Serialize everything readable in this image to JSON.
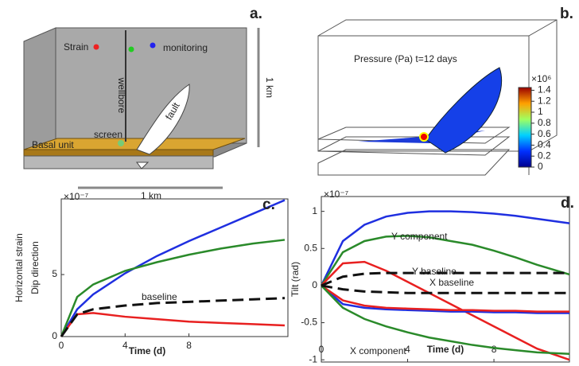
{
  "panel_a": {
    "label": "a.",
    "strain": "Strain",
    "monitoring": "monitoring",
    "wellbore": "wellbore",
    "screen": "screen",
    "basal_unit": "Basal unit",
    "fault": "fault",
    "scale_vertical": "1 km",
    "scale_horizontal": "1 km"
  },
  "panel_b": {
    "label": "b.",
    "title": "Pressure (Pa) t=12 days",
    "colorbar": {
      "multiplier": "×10⁶",
      "clim": [
        0,
        1.45
      ],
      "ticks": [
        1.4,
        1.2,
        1,
        0.8,
        0.6,
        0.4,
        0.2,
        0
      ]
    }
  },
  "chart_data": [
    {
      "type": "line",
      "label": "c.",
      "y_multiplier": "×10⁻⁷",
      "ylabel": "Horizontal strain",
      "ylabel2": "Dip direction",
      "xlabel": "Time (d)",
      "x": [
        0,
        1,
        2,
        4,
        6,
        8,
        10,
        12,
        14
      ],
      "xlim": [
        0,
        14.2
      ],
      "xticks": [
        0,
        4,
        8
      ],
      "ylim": [
        0,
        11.1
      ],
      "yticks": [
        0,
        5
      ],
      "annotations": [
        "baseline"
      ],
      "series": [
        {
          "color": "#1f2fe0",
          "values": [
            0,
            2.2,
            3.4,
            5.1,
            6.5,
            7.7,
            8.8,
            9.9,
            11
          ]
        },
        {
          "color": "#2a8a2a",
          "values": [
            0,
            3.2,
            4.2,
            5.3,
            6.0,
            6.6,
            7.1,
            7.5,
            7.8
          ]
        },
        {
          "color": "#e82020",
          "values": [
            0,
            1.8,
            1.9,
            1.6,
            1.4,
            1.2,
            1.1,
            1.0,
            0.9
          ]
        },
        {
          "color": "#111111",
          "dashed": true,
          "values": [
            0,
            1.8,
            2.2,
            2.5,
            2.7,
            2.8,
            2.9,
            3.0,
            3.1
          ]
        }
      ]
    },
    {
      "type": "line",
      "label": "d.",
      "y_multiplier": "×10⁻⁷",
      "ylabel": "Tilt (rad)",
      "xlabel": "Time (d)",
      "x": [
        0,
        1,
        2,
        3,
        4,
        5,
        6,
        7,
        8,
        9,
        10,
        11.5
      ],
      "xlim": [
        0,
        11.5
      ],
      "xticks": [
        0,
        4,
        8
      ],
      "ylim": [
        -1.03,
        1.2
      ],
      "yticks": [
        -1,
        -0.5,
        0,
        0.5,
        1
      ],
      "annotations": [
        "Y component",
        "Y baseline",
        "X baseline",
        "X component"
      ],
      "series": [
        {
          "color": "#1f2fe0",
          "values": [
            0,
            0.6,
            0.82,
            0.93,
            0.98,
            1.0,
            1.0,
            0.99,
            0.97,
            0.94,
            0.9,
            0.84
          ]
        },
        {
          "color": "#2a8a2a",
          "values": [
            0,
            0.45,
            0.6,
            0.66,
            0.67,
            0.65,
            0.6,
            0.55,
            0.47,
            0.38,
            0.28,
            0.15
          ]
        },
        {
          "color": "#e82020",
          "values": [
            0,
            0.3,
            0.32,
            0.2,
            0.05,
            -0.1,
            -0.25,
            -0.4,
            -0.55,
            -0.7,
            -0.85,
            -1.0
          ]
        },
        {
          "color": "#1f2fe0",
          "values": [
            0,
            -0.25,
            -0.3,
            -0.32,
            -0.33,
            -0.34,
            -0.35,
            -0.35,
            -0.36,
            -0.36,
            -0.37,
            -0.37
          ]
        },
        {
          "color": "#e82020",
          "values": [
            0,
            -0.2,
            -0.27,
            -0.3,
            -0.31,
            -0.32,
            -0.33,
            -0.33,
            -0.34,
            -0.34,
            -0.35,
            -0.35
          ]
        },
        {
          "color": "#2a8a2a",
          "values": [
            0,
            -0.3,
            -0.45,
            -0.55,
            -0.63,
            -0.7,
            -0.75,
            -0.8,
            -0.84,
            -0.87,
            -0.9,
            -0.92
          ]
        },
        {
          "color": "#111111",
          "dashed": true,
          "values": [
            0,
            0.12,
            0.16,
            0.17,
            0.17,
            0.17,
            0.17,
            0.17,
            0.17,
            0.17,
            0.17,
            0.17
          ]
        },
        {
          "color": "#111111",
          "dashed": true,
          "values": [
            0,
            -0.05,
            -0.08,
            -0.09,
            -0.1,
            -0.1,
            -0.1,
            -0.1,
            -0.1,
            -0.1,
            -0.1,
            -0.1
          ]
        }
      ]
    }
  ]
}
